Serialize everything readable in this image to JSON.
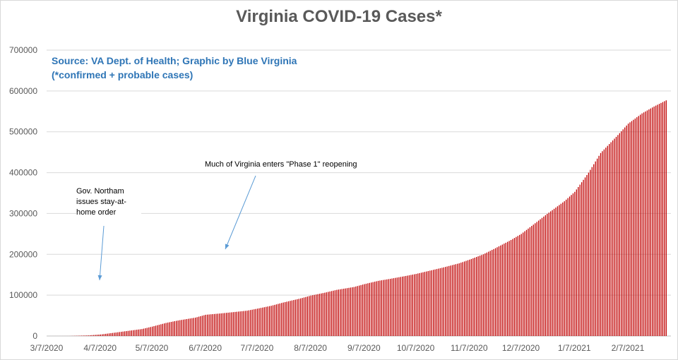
{
  "chart_data": {
    "type": "bar",
    "title": "Virginia COVID-19 Cases*",
    "source_lines": [
      "Source: VA Dept. of Health; Graphic by Blue Virginia",
      "(*confirmed + probable cases)"
    ],
    "xlabel": "",
    "ylabel": "",
    "ylim": [
      0,
      700000
    ],
    "y_ticks": [
      "0",
      "100000",
      "200000",
      "300000",
      "400000",
      "500000",
      "600000",
      "700000"
    ],
    "x_range": [
      "2020-03-07",
      "2021-03-01"
    ],
    "x_ticks": [
      "3/7/2020",
      "4/7/2020",
      "5/7/2020",
      "6/7/2020",
      "7/7/2020",
      "8/7/2020",
      "9/7/2020",
      "10/7/2020",
      "11/7/2020",
      "12/7/2020",
      "1/7/2021",
      "2/7/2021"
    ],
    "grid": true,
    "bar_color": "#c00000",
    "series": [
      {
        "x": [
          "2020-03-07",
          "2020-03-20",
          "2020-03-31",
          "2020-04-07",
          "2020-04-15",
          "2020-04-22",
          "2020-05-01",
          "2020-05-07",
          "2020-05-15",
          "2020-05-22",
          "2020-06-01",
          "2020-06-07",
          "2020-06-15",
          "2020-06-22",
          "2020-07-01",
          "2020-07-07",
          "2020-07-15",
          "2020-07-22",
          "2020-08-01",
          "2020-08-07",
          "2020-08-15",
          "2020-08-22",
          "2020-09-01",
          "2020-09-07",
          "2020-09-15",
          "2020-09-22",
          "2020-10-01",
          "2020-10-07",
          "2020-10-15",
          "2020-10-22",
          "2020-11-01",
          "2020-11-07",
          "2020-11-15",
          "2020-11-22",
          "2020-12-01",
          "2020-12-07",
          "2020-12-15",
          "2020-12-22",
          "2021-01-01",
          "2021-01-07",
          "2021-01-15",
          "2021-01-22",
          "2021-02-01",
          "2021-02-07",
          "2021-02-15",
          "2021-02-22",
          "2021-03-01"
        ],
        "values": [
          0,
          100,
          1500,
          3700,
          8000,
          12000,
          17000,
          23000,
          32000,
          38000,
          45000,
          52000,
          55000,
          58000,
          62000,
          67000,
          74000,
          82000,
          92000,
          99000,
          106000,
          113000,
          120000,
          127000,
          135000,
          140000,
          147000,
          152000,
          160000,
          167000,
          178000,
          187000,
          200000,
          215000,
          235000,
          250000,
          276000,
          299000,
          330000,
          353000,
          400000,
          448000,
          492000,
          520000,
          545000,
          562000,
          577000
        ]
      }
    ],
    "annotations": [
      "Gov. Northam issues stay-at-home order",
      "Much of Virginia enters \"Phase 1\" reopening"
    ]
  }
}
